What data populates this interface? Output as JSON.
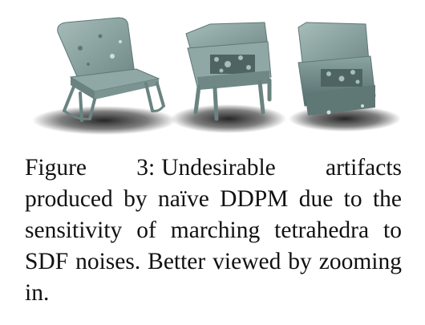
{
  "figure": {
    "renders": [
      {
        "description_name": "chair-render-1"
      },
      {
        "description_name": "chair-render-2"
      },
      {
        "description_name": "chair-render-3"
      }
    ],
    "caption": {
      "label": "Figure 3:",
      "text": "Undesirable artifacts produced by naïve DDPM due to the sensitivity of marching tetrahedra to SDF noises. Better viewed by zooming in."
    },
    "colors": {
      "mesh": "#7f9a97",
      "mesh_dark": "#5f7775",
      "mesh_light": "#a6bdba",
      "shadow": "#1e1e1e"
    }
  }
}
